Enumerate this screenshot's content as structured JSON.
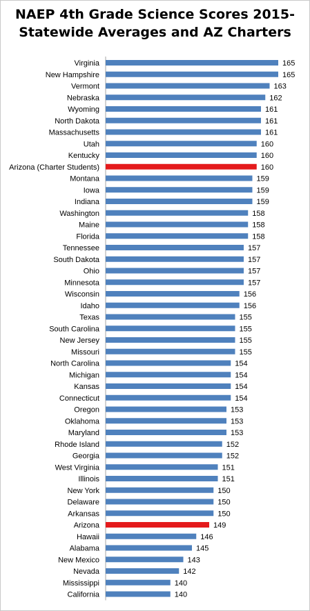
{
  "chart_data": {
    "type": "bar",
    "orientation": "horizontal",
    "title_lines": [
      "NAEP 4th Grade Science Scores 2015-",
      "Statewide Averages and AZ Charters"
    ],
    "categories": [
      "Virginia",
      "New Hampshire",
      "Vermont",
      "Nebraska",
      "Wyoming",
      "North Dakota",
      "Massachusetts",
      "Utah",
      "Kentucky",
      "Arizona (Charter Students)",
      "Montana",
      "Iowa",
      "Indiana",
      "Washington",
      "Maine",
      "Florida",
      "Tennessee",
      "South Dakota",
      "Ohio",
      "Minnesota",
      "Wisconsin",
      "Idaho",
      "Texas",
      "South Carolina",
      "New Jersey",
      "Missouri",
      "North Carolina",
      "Michigan",
      "Kansas",
      "Connecticut",
      "Oregon",
      "Oklahoma",
      "Maryland",
      "Rhode Island",
      "Georgia",
      "West Virginia",
      "Illinois",
      "New York",
      "Delaware",
      "Arkansas",
      "Arizona",
      "Hawaii",
      "Alabama",
      "New Mexico",
      "Nevada",
      "Mississippi",
      "California"
    ],
    "values": [
      165,
      165,
      163,
      162,
      161,
      161,
      161,
      160,
      160,
      160,
      159,
      159,
      159,
      158,
      158,
      158,
      157,
      157,
      157,
      157,
      156,
      156,
      155,
      155,
      155,
      155,
      154,
      154,
      154,
      154,
      153,
      153,
      153,
      152,
      152,
      151,
      151,
      150,
      150,
      150,
      149,
      146,
      145,
      143,
      142,
      140,
      140
    ],
    "highlighted": [
      "Arizona (Charter Students)",
      "Arizona"
    ],
    "xlim": [
      125,
      165
    ],
    "data_labels": true,
    "grid": false,
    "legend": "none",
    "colors": {
      "bar": "#4f81bd",
      "highlight": "#e41a1c",
      "axis": "#a6a6a6"
    }
  }
}
